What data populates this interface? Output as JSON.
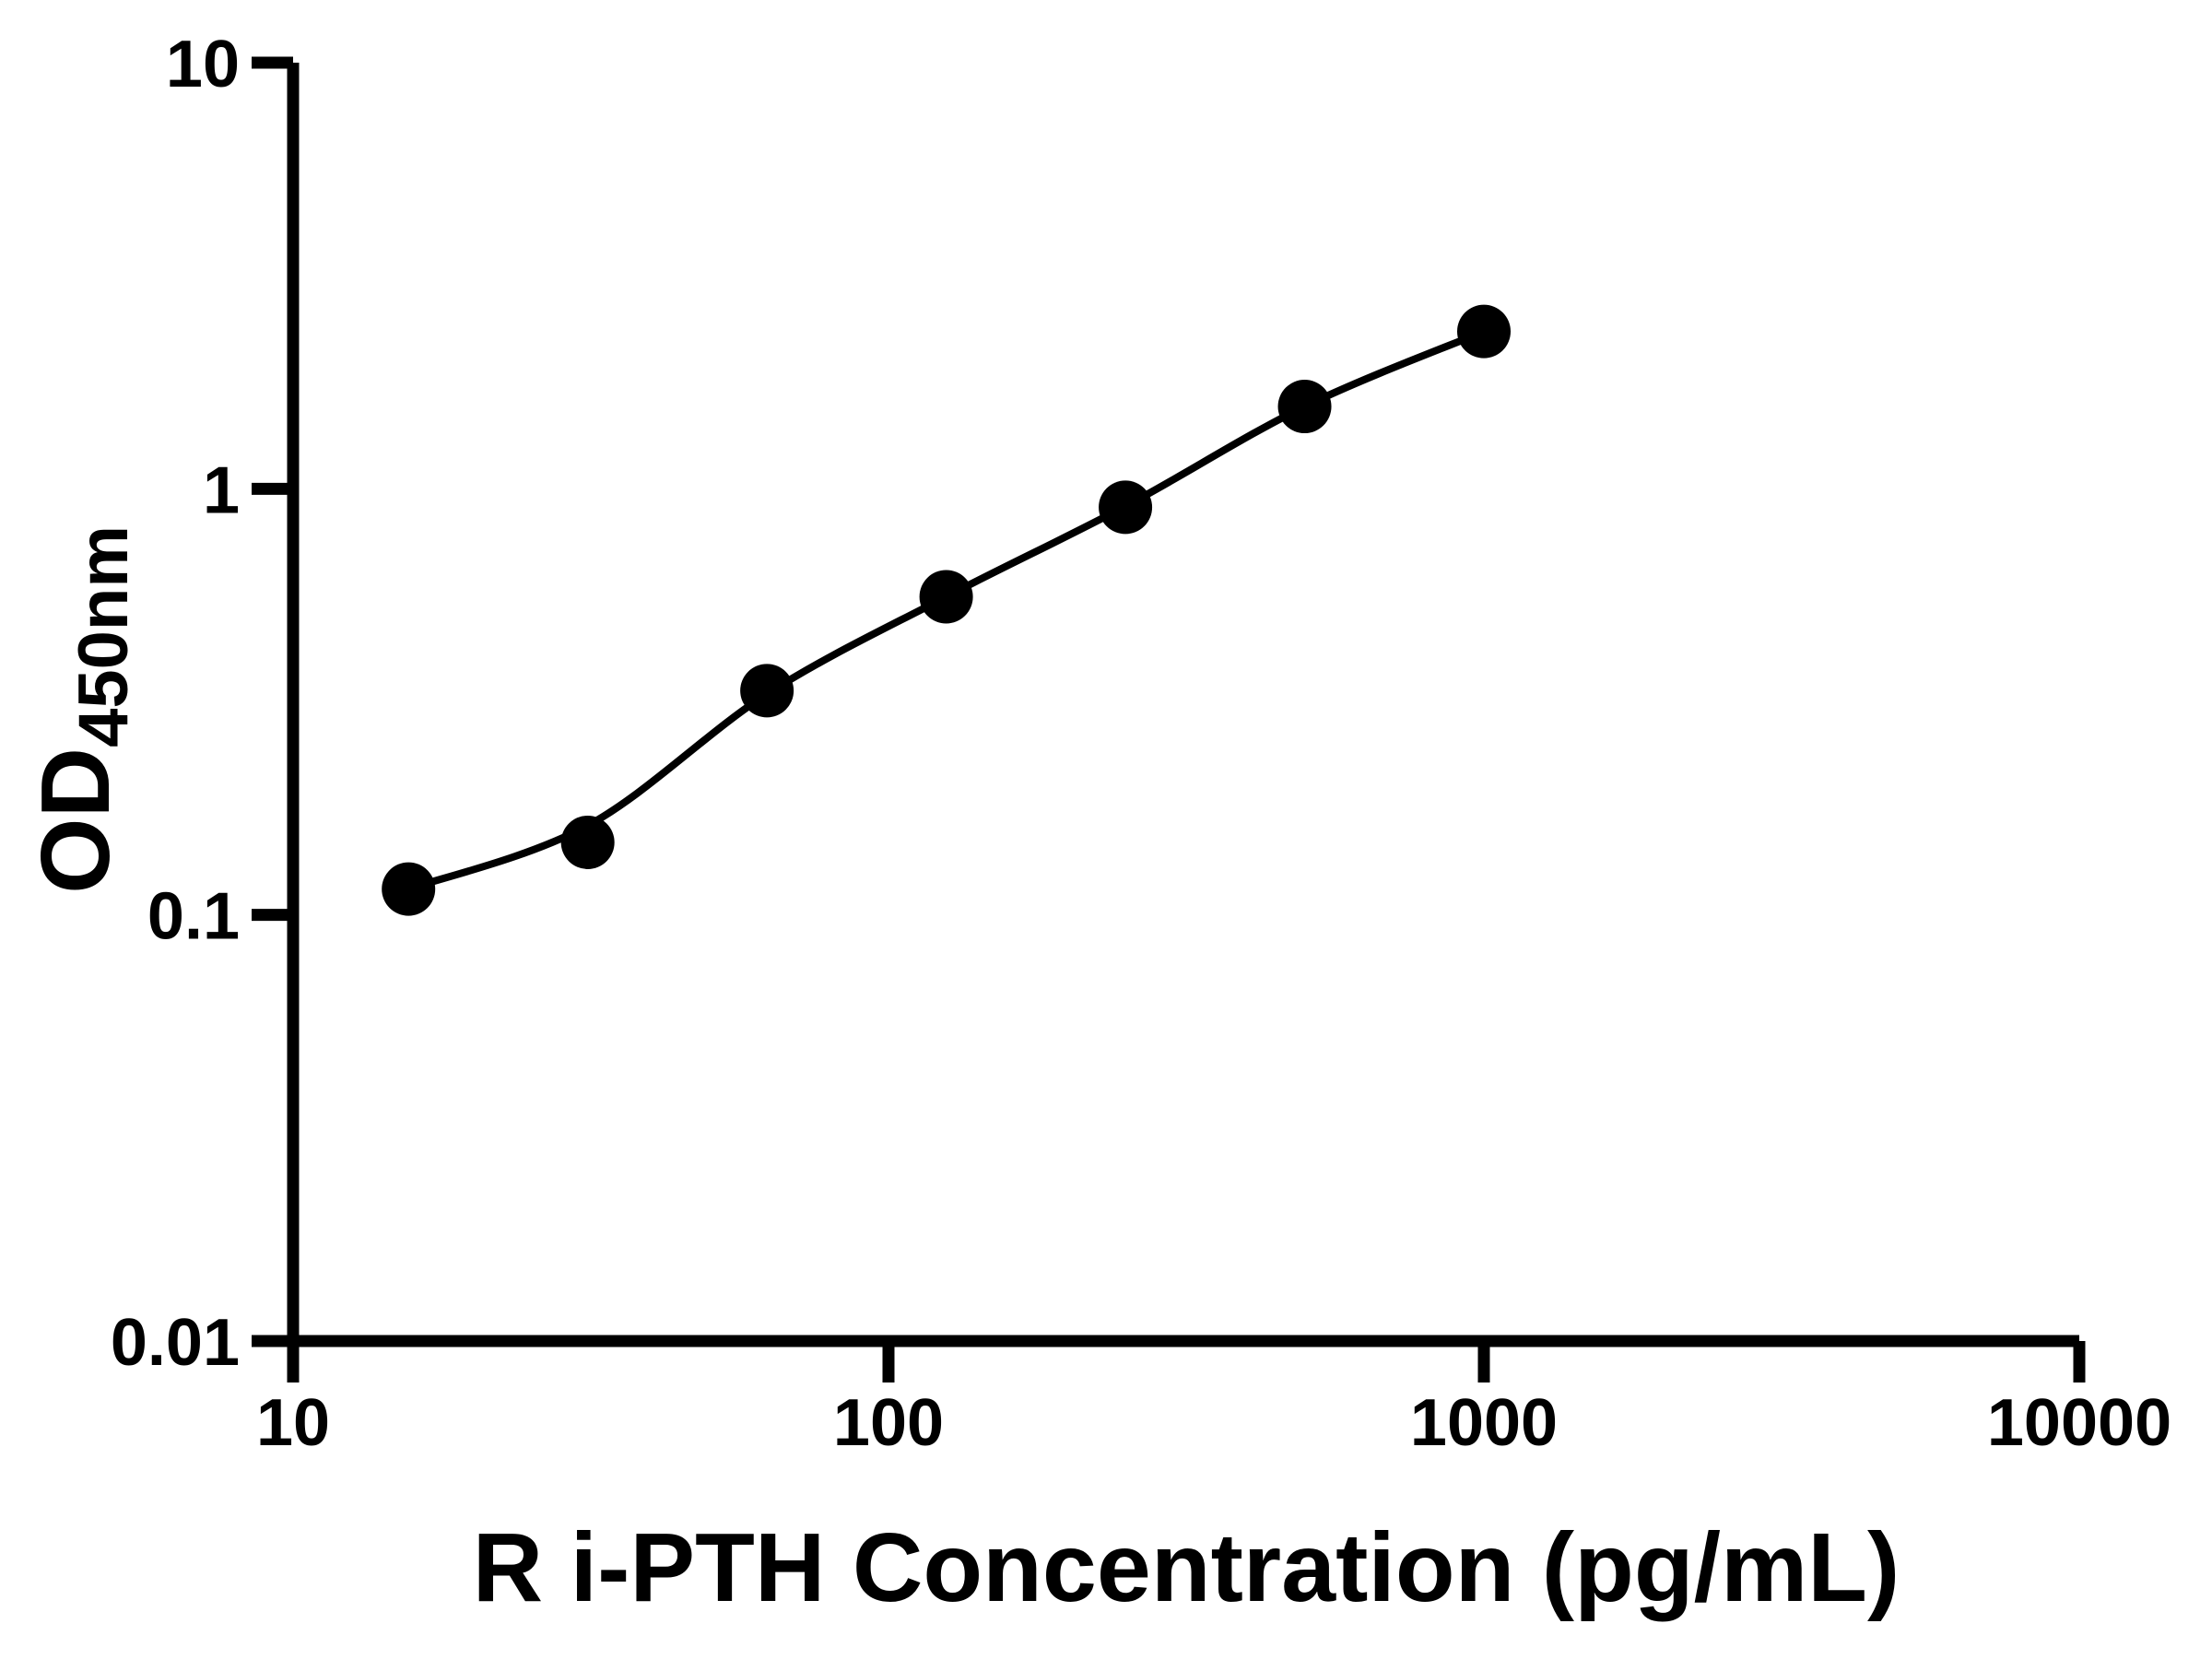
{
  "page": {
    "background": "#ffffff",
    "ink": "#000000"
  },
  "chart_data": {
    "type": "scatter",
    "title": "",
    "xlabel": "R i-PTH Concentration (pg/mL)",
    "ylabel": "OD",
    "ylabel_subscript": "450nm",
    "x_scale": "log",
    "y_scale": "log",
    "xlim": [
      10,
      10000
    ],
    "ylim": [
      0.01,
      10
    ],
    "x_ticks": [
      "10",
      "100",
      "1000",
      "10000"
    ],
    "y_ticks": [
      "10",
      "1",
      "0.1",
      "0.01"
    ],
    "grid": false,
    "legend_position": "none",
    "marker": "circle",
    "marker_color": "#000000",
    "line_color": "#000000",
    "series": [
      {
        "name": "standard-points",
        "type": "scatter",
        "x": [
          15.625,
          31.25,
          62.5,
          125,
          250,
          500,
          1000
        ],
        "y": [
          0.115,
          0.148,
          0.336,
          0.558,
          0.905,
          1.56,
          2.34
        ]
      },
      {
        "name": "fitted-curve",
        "type": "line",
        "x": [
          15.625,
          31.25,
          62.5,
          125,
          250,
          500,
          1000
        ],
        "y": [
          0.115,
          0.162,
          0.33,
          0.558,
          0.91,
          1.56,
          2.34
        ]
      }
    ]
  }
}
